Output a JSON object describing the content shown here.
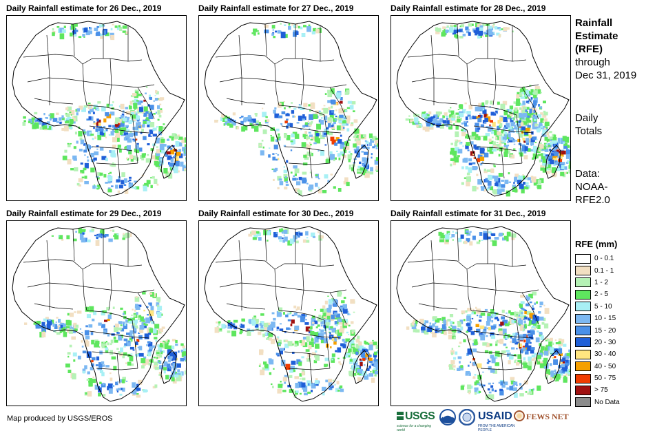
{
  "panels": [
    {
      "title": "Daily Rainfall estimate for 26 Dec., 2019",
      "intensity": 0.7
    },
    {
      "title": "Daily Rainfall estimate for 27 Dec., 2019",
      "intensity": 0.55
    },
    {
      "title": "Daily Rainfall estimate for 28 Dec., 2019",
      "intensity": 1.0
    },
    {
      "title": "Daily Rainfall estimate for 29 Dec., 2019",
      "intensity": 0.6
    },
    {
      "title": "Daily Rainfall estimate for 30 Dec., 2019",
      "intensity": 0.65
    },
    {
      "title": "Daily Rainfall estimate for 31 Dec., 2019",
      "intensity": 0.75
    }
  ],
  "sidebar": {
    "title_line1": "Rainfall",
    "title_line2": "Estimate",
    "title_line3": "(RFE)",
    "through_line1": "through",
    "through_line2": "Dec 31, 2019",
    "daily_line1": "Daily",
    "daily_line2": "Totals",
    "data_line1": "Data:",
    "data_line2": "NOAA-",
    "data_line3": "RFE2.0"
  },
  "legend": {
    "title": "RFE (mm)",
    "items": [
      {
        "label": "0 - 0.1",
        "color": "#ffffff"
      },
      {
        "label": "0.1 - 1",
        "color": "#f2dfc2"
      },
      {
        "label": "1 - 2",
        "color": "#b5f2b5"
      },
      {
        "label": "2 - 5",
        "color": "#5ee65e"
      },
      {
        "label": "5 - 10",
        "color": "#a8f0f5"
      },
      {
        "label": "10 - 15",
        "color": "#7cb8f2"
      },
      {
        "label": "15 - 20",
        "color": "#4a90e8"
      },
      {
        "label": "20 - 30",
        "color": "#1f5fd8"
      },
      {
        "label": "30 - 40",
        "color": "#ffe680"
      },
      {
        "label": "40 - 50",
        "color": "#f5a000"
      },
      {
        "label": "50 - 75",
        "color": "#f03c00"
      },
      {
        "label": "> 75",
        "color": "#a01010"
      },
      {
        "label": "No Data",
        "color": "#8c8c8c"
      }
    ]
  },
  "credit": "Map produced by USGS/EROS",
  "logos": {
    "usgs": "USGS",
    "usgs_tagline": "science for a changing world",
    "usaid": "USAID",
    "usaid_tagline": "FROM THE AMERICAN PEOPLE",
    "fews": "FEWS NET"
  }
}
